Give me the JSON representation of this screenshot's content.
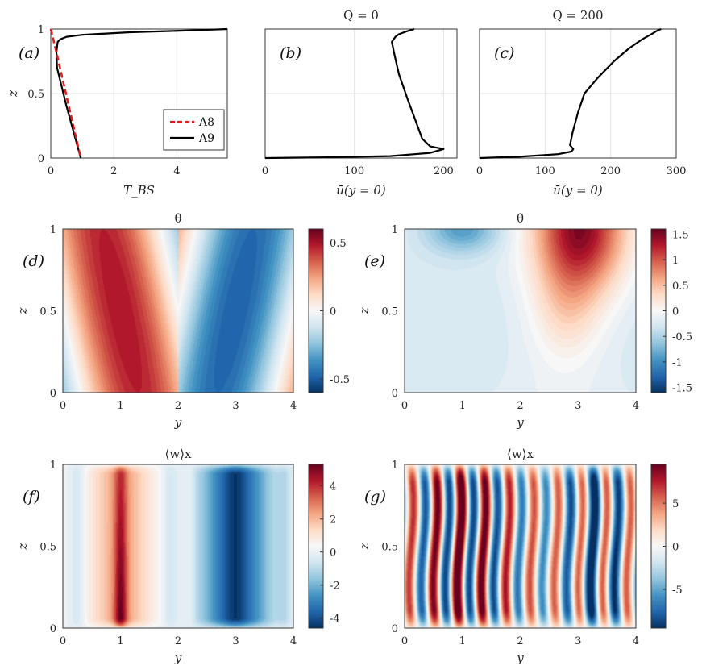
{
  "chart_data": [
    {
      "panel": "a",
      "type": "line",
      "label": "(a)",
      "xlabel": "T_BS",
      "ylabel": "z",
      "xlim": [
        0,
        5.6
      ],
      "ylim": [
        0,
        1
      ],
      "xticks": [
        "0",
        "2",
        "4"
      ],
      "yticks": [
        "0",
        "0.5",
        "1"
      ],
      "legend": [
        "A8",
        "A9"
      ],
      "legend_position": "bottom-right",
      "series": [
        {
          "name": "A8",
          "color": "#e41a1c",
          "style": "dashed",
          "x": [
            0.0,
            0.18,
            0.95
          ],
          "z": [
            1.0,
            0.82,
            0.0
          ]
        },
        {
          "name": "A9",
          "color": "#000000",
          "style": "solid",
          "x": [
            5.6,
            4.5,
            2.5,
            1.0,
            0.5,
            0.3,
            0.22,
            0.18,
            0.2,
            0.5,
            0.95
          ],
          "z": [
            1.0,
            0.99,
            0.975,
            0.955,
            0.94,
            0.92,
            0.9,
            0.82,
            0.7,
            0.4,
            0.0
          ]
        }
      ]
    },
    {
      "panel": "b",
      "type": "line",
      "label": "(b)",
      "title": "Q = 0",
      "xlabel": "ū(y = 0)",
      "xlim": [
        0,
        215
      ],
      "ylim": [
        0,
        1
      ],
      "xticks": [
        "0",
        "100",
        "200"
      ],
      "series": [
        {
          "name": "ū",
          "color": "#000000",
          "x": [
            0,
            60,
            140,
            185,
            195,
            200,
            185,
            176,
            168,
            160,
            150,
            145,
            142,
            146,
            150,
            160,
            167
          ],
          "z": [
            0.0,
            0.005,
            0.015,
            0.04,
            0.06,
            0.07,
            0.09,
            0.15,
            0.3,
            0.45,
            0.65,
            0.8,
            0.9,
            0.94,
            0.96,
            0.985,
            1.0
          ]
        }
      ]
    },
    {
      "panel": "c",
      "type": "line",
      "label": "(c)",
      "title": "Q = 200",
      "xlabel": "ū(y = 0)",
      "xlim": [
        0,
        300
      ],
      "ylim": [
        0,
        1
      ],
      "xticks": [
        "0",
        "100",
        "200",
        "300"
      ],
      "series": [
        {
          "name": "ū",
          "color": "#000000",
          "x": [
            0,
            60,
            120,
            140,
            143,
            138,
            142,
            150,
            160,
            180,
            205,
            228,
            248,
            262,
            272,
            277
          ],
          "z": [
            0.0,
            0.01,
            0.03,
            0.05,
            0.07,
            0.1,
            0.2,
            0.35,
            0.5,
            0.62,
            0.75,
            0.85,
            0.92,
            0.96,
            0.99,
            1.0
          ]
        }
      ]
    },
    {
      "panel": "d",
      "type": "heatmap",
      "label": "(d)",
      "title": "θ̄",
      "xlabel": "y",
      "ylabel": "z",
      "xlim": [
        0,
        4
      ],
      "ylim": [
        0,
        1
      ],
      "xticks": [
        "0",
        "1",
        "2",
        "3",
        "4"
      ],
      "yticks": [
        "0",
        "0.5",
        "1"
      ],
      "clim": [
        -0.6,
        0.6
      ],
      "cbar_ticks": [
        "0.5",
        "0",
        "-0.5"
      ],
      "cbar_values": [
        0.5,
        0,
        -0.5
      ]
    },
    {
      "panel": "e",
      "type": "heatmap",
      "label": "(e)",
      "title": "θ̄",
      "xlabel": "y",
      "ylabel": "z",
      "xlim": [
        0,
        4
      ],
      "ylim": [
        0,
        1
      ],
      "xticks": [
        "0",
        "1",
        "2",
        "3",
        "4"
      ],
      "yticks": [
        "0",
        "0.5",
        "1"
      ],
      "clim": [
        -1.6,
        1.6
      ],
      "cbar_ticks": [
        "1.5",
        "1",
        "0.5",
        "0",
        "-0.5",
        "-1",
        "-1.5"
      ],
      "cbar_values": [
        1.5,
        1,
        0.5,
        0,
        -0.5,
        -1,
        -1.5
      ]
    },
    {
      "panel": "f",
      "type": "heatmap",
      "label": "(f)",
      "title": "⟨w⟩x",
      "xlabel": "y",
      "ylabel": "z",
      "xlim": [
        0,
        4
      ],
      "ylim": [
        0,
        1
      ],
      "xticks": [
        "0",
        "1",
        "2",
        "3",
        "4"
      ],
      "yticks": [
        "0",
        "0.5",
        "1"
      ],
      "clim": [
        -4.6,
        5.3
      ],
      "cbar_ticks": [
        "4",
        "2",
        "0",
        "-2",
        "-4"
      ],
      "cbar_values": [
        4,
        2,
        0,
        -2,
        -4
      ]
    },
    {
      "panel": "g",
      "type": "heatmap",
      "label": "(g)",
      "title": "⟨w⟩x",
      "xlabel": "y",
      "ylabel": "z",
      "xlim": [
        0,
        4
      ],
      "ylim": [
        0,
        1
      ],
      "xticks": [
        "0",
        "1",
        "2",
        "3",
        "4"
      ],
      "yticks": [
        "0",
        "0.5",
        "1"
      ],
      "clim": [
        -9.5,
        9.5
      ],
      "cbar_ticks": [
        "5",
        "0",
        "-5"
      ],
      "cbar_values": [
        5,
        0,
        -5
      ]
    }
  ]
}
